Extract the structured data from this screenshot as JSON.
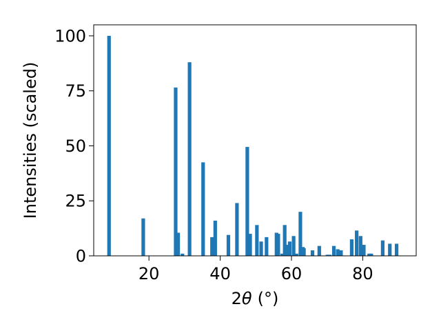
{
  "chart_data": {
    "type": "bar",
    "xlabel": "2θ (°)",
    "xlabel_parts": {
      "prefix": "2",
      "symbol": "θ",
      "unit": "(°)"
    },
    "ylabel": "Intensities (scaled)",
    "xlim": [
      4.5,
      95
    ],
    "ylim": [
      0,
      105
    ],
    "xticks": [
      20,
      40,
      60,
      80
    ],
    "yticks": [
      0,
      25,
      50,
      75,
      100
    ],
    "bar_color": "#1f77b4",
    "grid": false,
    "x": [
      8.8,
      18.4,
      27.5,
      28.2,
      29.4,
      31.4,
      35.2,
      37.7,
      38.6,
      42.3,
      44.7,
      47.6,
      48.4,
      50.3,
      51.5,
      53.0,
      55.8,
      56.3,
      57.4,
      58.1,
      59.0,
      59.5,
      60.6,
      61.4,
      62.5,
      63.2,
      63.5,
      65.9,
      67.8,
      70.1,
      70.7,
      71.9,
      73.0,
      73.9,
      76.9,
      78.3,
      79.4,
      79.6,
      80.3,
      81.8,
      82.4,
      85.6,
      87.6,
      89.5
    ],
    "values": [
      100,
      17,
      76.5,
      10.5,
      1,
      88,
      42.5,
      8.5,
      16,
      9.5,
      24,
      49.5,
      10,
      14,
      6.5,
      8.5,
      10.5,
      10,
      1,
      14,
      5,
      6.5,
      9,
      1,
      20,
      4,
      3.5,
      2.5,
      4.5,
      0.5,
      0.5,
      4.5,
      3,
      2.5,
      7.5,
      11.5,
      9,
      3.5,
      5,
      1,
      1,
      7,
      5.5,
      5.5
    ]
  }
}
